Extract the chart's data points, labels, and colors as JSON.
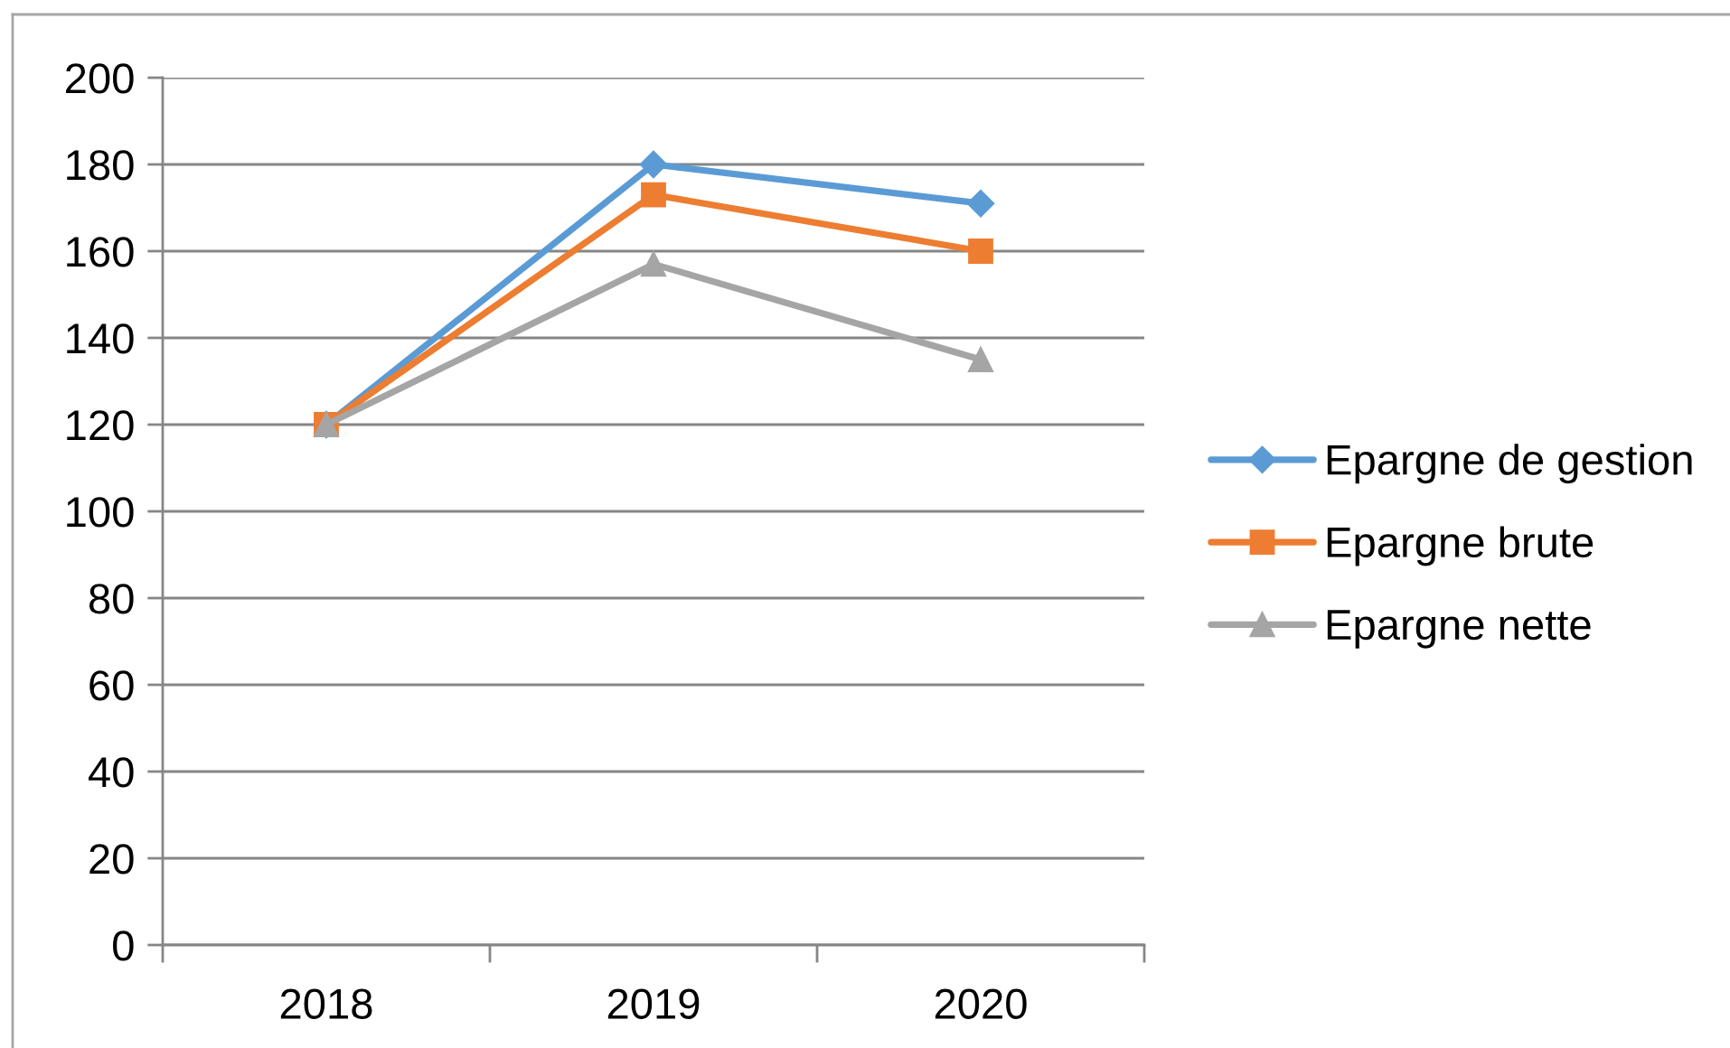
{
  "chart_data": {
    "type": "line",
    "categories": [
      "2018",
      "2019",
      "2020"
    ],
    "series": [
      {
        "name": "Epargne de gestion",
        "color": "#5b9bd5",
        "marker": "diamond",
        "values": [
          120,
          180,
          171
        ]
      },
      {
        "name": "Epargne brute",
        "color": "#ed7d31",
        "marker": "square",
        "values": [
          120,
          173,
          160
        ]
      },
      {
        "name": "Epargne nette",
        "color": "#a5a5a5",
        "marker": "triangle",
        "values": [
          120,
          157,
          135
        ]
      }
    ],
    "ylim": [
      0,
      200
    ],
    "yticks": [
      0,
      20,
      40,
      60,
      80,
      100,
      120,
      140,
      160,
      180,
      200
    ],
    "grid": "y",
    "legend": "right",
    "line_style": "solid"
  }
}
